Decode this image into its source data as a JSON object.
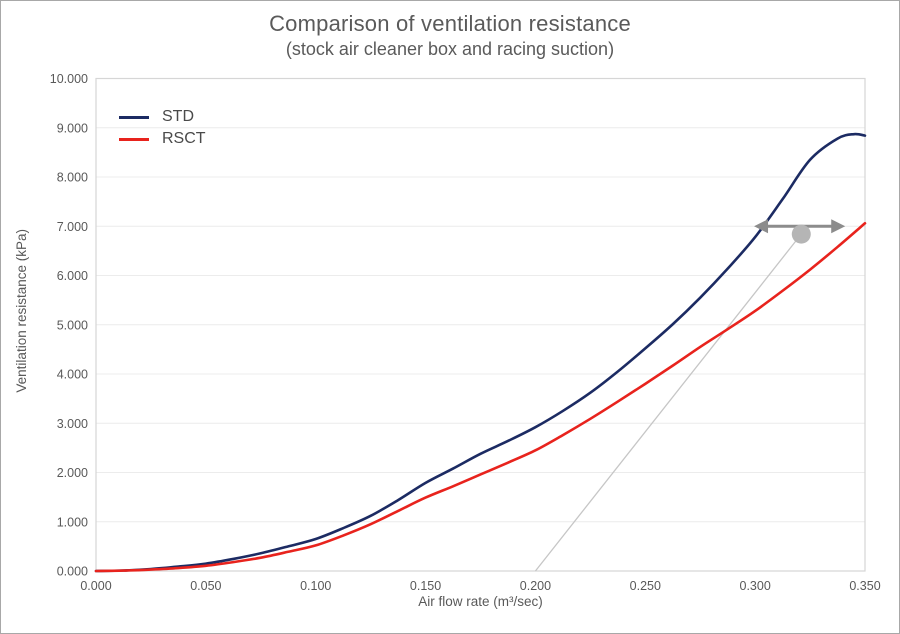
{
  "chart_data": {
    "type": "line",
    "title": "Comparison of ventilation resistance",
    "subtitle": "(stock air cleaner box and racing suction)",
    "xlabel": "Air flow rate (m³/sec)",
    "ylabel": "Ventilation resistance (kPa)",
    "xlim": [
      0,
      0.35
    ],
    "ylim": [
      0,
      10
    ],
    "grid": "horizontal",
    "legend_position": "top-left-inside",
    "x_ticks": [
      {
        "value": 0.0,
        "label": "0.000"
      },
      {
        "value": 0.05,
        "label": "0.050"
      },
      {
        "value": 0.1,
        "label": "0.100"
      },
      {
        "value": 0.15,
        "label": "0.150"
      },
      {
        "value": 0.2,
        "label": "0.200"
      },
      {
        "value": 0.25,
        "label": "0.250"
      },
      {
        "value": 0.3,
        "label": "0.300"
      },
      {
        "value": 0.35,
        "label": "0.350"
      }
    ],
    "y_ticks": [
      {
        "value": 0,
        "label": "0.000"
      },
      {
        "value": 1,
        "label": "1.000"
      },
      {
        "value": 2,
        "label": "2.000"
      },
      {
        "value": 3,
        "label": "3.000"
      },
      {
        "value": 4,
        "label": "4.000"
      },
      {
        "value": 5,
        "label": "5.000"
      },
      {
        "value": 6,
        "label": "6.000"
      },
      {
        "value": 7,
        "label": "7.000"
      },
      {
        "value": 8,
        "label": "8.000"
      },
      {
        "value": 9,
        "label": "9.000"
      },
      {
        "value": 10,
        "label": "10.000"
      }
    ],
    "series": [
      {
        "name": "STD",
        "color": "#1c2b63",
        "points": [
          [
            0,
            0
          ],
          [
            0.0125,
            0.01
          ],
          [
            0.025,
            0.04
          ],
          [
            0.0375,
            0.09
          ],
          [
            0.05,
            0.15
          ],
          [
            0.0625,
            0.245
          ],
          [
            0.075,
            0.36
          ],
          [
            0.0875,
            0.5
          ],
          [
            0.1,
            0.65
          ],
          [
            0.1125,
            0.87
          ],
          [
            0.125,
            1.12
          ],
          [
            0.1375,
            1.44
          ],
          [
            0.15,
            1.79
          ],
          [
            0.1625,
            2.08
          ],
          [
            0.175,
            2.38
          ],
          [
            0.1875,
            2.64
          ],
          [
            0.2,
            2.92
          ],
          [
            0.2125,
            3.25
          ],
          [
            0.225,
            3.62
          ],
          [
            0.2375,
            4.05
          ],
          [
            0.25,
            4.52
          ],
          [
            0.2625,
            5.01
          ],
          [
            0.275,
            5.55
          ],
          [
            0.2875,
            6.14
          ],
          [
            0.3,
            6.78
          ],
          [
            0.3125,
            7.55
          ],
          [
            0.325,
            8.35
          ],
          [
            0.3375,
            8.78
          ],
          [
            0.345,
            8.87
          ],
          [
            0.35,
            8.84
          ]
        ]
      },
      {
        "name": "RSCT",
        "color": "#e8231d",
        "points": [
          [
            0,
            0
          ],
          [
            0.0125,
            0.008
          ],
          [
            0.025,
            0.03
          ],
          [
            0.0375,
            0.06
          ],
          [
            0.05,
            0.105
          ],
          [
            0.0625,
            0.18
          ],
          [
            0.075,
            0.27
          ],
          [
            0.0875,
            0.39
          ],
          [
            0.1,
            0.52
          ],
          [
            0.1125,
            0.72
          ],
          [
            0.125,
            0.95
          ],
          [
            0.1375,
            1.22
          ],
          [
            0.15,
            1.49
          ],
          [
            0.1625,
            1.72
          ],
          [
            0.175,
            1.96
          ],
          [
            0.1875,
            2.2
          ],
          [
            0.2,
            2.45
          ],
          [
            0.2125,
            2.76
          ],
          [
            0.225,
            3.09
          ],
          [
            0.2375,
            3.44
          ],
          [
            0.25,
            3.8
          ],
          [
            0.2625,
            4.17
          ],
          [
            0.275,
            4.55
          ],
          [
            0.2875,
            4.91
          ],
          [
            0.3,
            5.28
          ],
          [
            0.3125,
            5.69
          ],
          [
            0.325,
            6.12
          ],
          [
            0.3375,
            6.58
          ],
          [
            0.35,
            7.06
          ]
        ]
      }
    ],
    "annotations": {
      "double_arrow": {
        "y": 7.0,
        "x_tip_left": 0.2995,
        "x_tip_right": 0.341,
        "color": "#8c8c8c"
      },
      "dot": {
        "x": 0.321,
        "y": 6.84,
        "radius_px": 9.5,
        "color": "#b5b5b5"
      },
      "leader_line": {
        "x1": 0.2,
        "y1": 0.0,
        "x2": 0.321,
        "y2": 6.84,
        "color": "#c6c6c6"
      }
    },
    "style": {
      "gridline_color": "#ececec",
      "plot_border_color": "#d6d6d6",
      "tick_label_color": "#595959",
      "line_width": 2.6
    }
  }
}
